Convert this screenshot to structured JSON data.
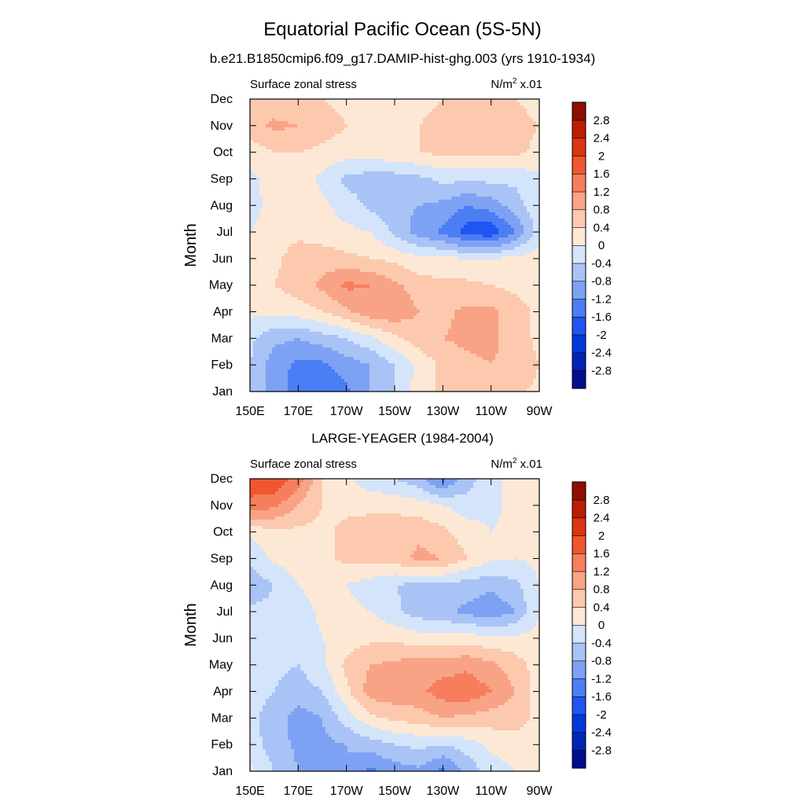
{
  "figure": {
    "title": "Equatorial Pacific Ocean (5S-5N)"
  },
  "colors": {
    "levels": [
      -2.8,
      -2.4,
      -2.0,
      -1.6,
      -1.2,
      -0.8,
      -0.4,
      0,
      0.4,
      0.8,
      1.2,
      1.6,
      2.0,
      2.4,
      2.8
    ],
    "fills": [
      "#000e8c",
      "#0024b4",
      "#0039d8",
      "#1f55f2",
      "#4b7ef4",
      "#7ea2f3",
      "#a9c3f6",
      "#d4e4fa",
      "#fde8d6",
      "#fcc9ae",
      "#f9a386",
      "#f67e5c",
      "#f05630",
      "#de3412",
      "#bc1d00",
      "#8e0e00"
    ]
  },
  "chart_data": [
    {
      "type": "heatmap",
      "title": "b.e21.B1850cmip6.f09_g17.DAMIP-hist-ghg.003 (yrs 1910-1934)",
      "left_label": "Surface zonal stress",
      "units_label": "N/m",
      "units_exp": "2",
      "units_scale": " x.01",
      "ylabel": "Month",
      "x_ticks": [
        "150E",
        "170E",
        "170W",
        "150W",
        "130W",
        "110W",
        "90W"
      ],
      "y_ticks": [
        "Jan",
        "Feb",
        "Mar",
        "Apr",
        "May",
        "Jun",
        "Jul",
        "Aug",
        "Sep",
        "Oct",
        "Nov",
        "Dec"
      ],
      "colorbar_labels": [
        "2.8",
        "2.4",
        "2",
        "1.6",
        "1.2",
        "0.8",
        "0.4",
        "0",
        "-0.4",
        "-0.8",
        "-1.2",
        "-1.6",
        "-2",
        "-2.4",
        "-2.8"
      ],
      "x_lon": [
        150,
        160,
        170,
        180,
        190,
        200,
        210,
        220,
        230,
        240,
        250,
        260,
        270
      ],
      "z": [
        [
          -0.4,
          -1.0,
          -1.4,
          -1.6,
          -1.3,
          -0.8,
          -0.4,
          0.2,
          0.5,
          0.6,
          0.6,
          0.5,
          0.3
        ],
        [
          -0.4,
          -1.0,
          -1.3,
          -1.3,
          -1.0,
          -0.8,
          -0.4,
          0.1,
          0.5,
          0.7,
          0.8,
          0.7,
          0.4
        ],
        [
          -0.3,
          -0.7,
          -0.8,
          -0.6,
          -0.4,
          -0.1,
          0.3,
          0.6,
          0.8,
          0.9,
          0.9,
          0.6,
          0.3
        ],
        [
          0.1,
          0.1,
          0.2,
          0.4,
          0.7,
          1.1,
          1.1,
          0.8,
          0.7,
          0.9,
          0.9,
          0.6,
          0.3
        ],
        [
          0.2,
          0.4,
          0.6,
          0.9,
          1.3,
          1.2,
          0.9,
          0.6,
          0.5,
          0.5,
          0.4,
          0.3,
          0.2
        ],
        [
          0.2,
          0.3,
          0.6,
          0.6,
          0.5,
          0.4,
          0.3,
          0.1,
          0.1,
          0.0,
          0.0,
          0.1,
          0.2
        ],
        [
          0.0,
          0.2,
          0.3,
          0.2,
          0.1,
          0.0,
          -0.5,
          -1.0,
          -1.3,
          -1.8,
          -1.9,
          -1.2,
          -0.2
        ],
        [
          -0.2,
          0.2,
          0.3,
          0.1,
          -0.2,
          -0.5,
          -0.7,
          -0.8,
          -0.9,
          -1.2,
          -1.0,
          -0.6,
          -0.1
        ],
        [
          -0.1,
          0.2,
          0.2,
          -0.1,
          -0.5,
          -0.6,
          -0.6,
          -0.5,
          -0.3,
          -0.3,
          -0.3,
          -0.3,
          -0.1
        ],
        [
          0.2,
          0.4,
          0.4,
          0.3,
          0.2,
          0.2,
          0.3,
          0.4,
          0.5,
          0.5,
          0.5,
          0.5,
          0.3
        ],
        [
          0.6,
          0.9,
          0.8,
          0.6,
          0.4,
          0.3,
          0.3,
          0.4,
          0.5,
          0.6,
          0.6,
          0.5,
          0.4
        ],
        [
          0.4,
          0.5,
          0.5,
          0.4,
          0.3,
          0.2,
          0.2,
          0.3,
          0.4,
          0.4,
          0.4,
          0.4,
          0.3
        ]
      ]
    },
    {
      "type": "heatmap",
      "title": "LARGE-YEAGER (1984-2004)",
      "left_label": "Surface zonal stress",
      "units_label": "N/m",
      "units_exp": "2",
      "units_scale": " x.01",
      "ylabel": "Month",
      "x_ticks": [
        "150E",
        "170E",
        "170W",
        "150W",
        "130W",
        "110W",
        "90W"
      ],
      "y_ticks": [
        "Jan",
        "Feb",
        "Mar",
        "Apr",
        "May",
        "Jun",
        "Jul",
        "Aug",
        "Sep",
        "Oct",
        "Nov",
        "Dec"
      ],
      "colorbar_labels": [
        "2.8",
        "2.4",
        "2",
        "1.6",
        "1.2",
        "0.8",
        "0.4",
        "0",
        "-0.4",
        "-0.8",
        "-1.2",
        "-1.6",
        "-2",
        "-2.4",
        "-2.8"
      ],
      "x_lon": [
        150,
        160,
        170,
        180,
        190,
        200,
        210,
        220,
        230,
        240,
        250,
        260,
        270
      ],
      "z": [
        [
          0.1,
          -0.4,
          -0.8,
          -0.8,
          -0.8,
          -1.3,
          -1.0,
          -0.9,
          -1.3,
          -0.7,
          -0.2,
          0.0,
          0.1
        ],
        [
          -0.2,
          -0.6,
          -0.9,
          -0.9,
          -0.8,
          -0.6,
          -0.4,
          -0.3,
          -0.4,
          -0.2,
          0.1,
          0.2,
          0.1
        ],
        [
          -0.3,
          -0.6,
          -1.0,
          -0.8,
          -0.2,
          0.3,
          0.5,
          0.6,
          0.8,
          0.7,
          0.6,
          0.6,
          0.3
        ],
        [
          -0.2,
          -0.4,
          -0.6,
          -0.4,
          0.3,
          1.0,
          1.1,
          1.1,
          1.4,
          1.5,
          1.2,
          0.8,
          0.2
        ],
        [
          -0.2,
          -0.3,
          -0.4,
          -0.1,
          0.5,
          0.8,
          0.9,
          1.0,
          1.0,
          1.1,
          0.9,
          0.6,
          0.2
        ],
        [
          -0.1,
          -0.3,
          -0.3,
          0.0,
          0.2,
          0.3,
          0.3,
          0.2,
          0.2,
          0.2,
          0.1,
          0.1,
          0.1
        ],
        [
          -0.3,
          -0.3,
          -0.2,
          0.1,
          0.1,
          0.0,
          -0.3,
          -0.6,
          -0.7,
          -0.9,
          -1.1,
          -0.8,
          0.0
        ],
        [
          -0.7,
          -0.4,
          0.0,
          0.2,
          0.0,
          -0.2,
          -0.4,
          -0.5,
          -0.5,
          -0.6,
          -0.7,
          -0.5,
          0.0
        ],
        [
          -0.3,
          0.1,
          0.2,
          0.3,
          0.5,
          0.6,
          0.6,
          0.9,
          0.8,
          0.4,
          0.1,
          0.0,
          0.1
        ],
        [
          0.1,
          0.3,
          0.3,
          0.3,
          0.5,
          0.6,
          0.6,
          0.7,
          0.5,
          0.2,
          0.0,
          0.1,
          0.2
        ],
        [
          1.5,
          1.3,
          0.8,
          0.4,
          0.3,
          0.3,
          0.3,
          0.2,
          0.0,
          -0.2,
          -0.1,
          0.1,
          0.3
        ],
        [
          1.8,
          2.0,
          1.4,
          0.4,
          0.1,
          -0.3,
          -0.4,
          -0.7,
          -1.3,
          -0.6,
          -0.1,
          0.1,
          0.3
        ]
      ]
    }
  ]
}
